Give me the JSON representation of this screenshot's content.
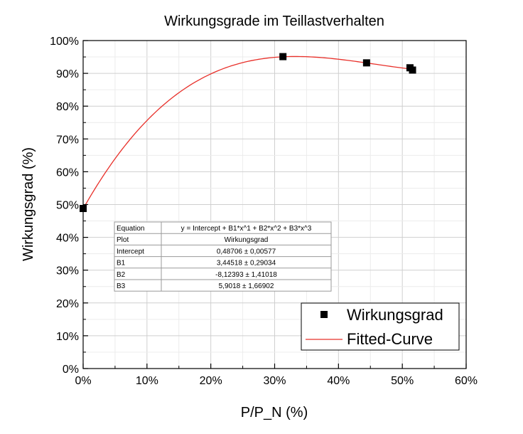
{
  "chart_data": {
    "type": "scatter",
    "title": "Wirkungsgrade im Teillastverhalten",
    "xlabel": "P/P_N (%)",
    "ylabel": "Wirkungsgrad (%)",
    "xlim": [
      0,
      0.6
    ],
    "ylim": [
      0,
      1.0
    ],
    "x_ticks": [
      "0%",
      "10%",
      "20%",
      "30%",
      "40%",
      "50%",
      "60%"
    ],
    "y_ticks": [
      "0%",
      "10%",
      "20%",
      "30%",
      "40%",
      "50%",
      "60%",
      "70%",
      "80%",
      "90%",
      "100%"
    ],
    "grid": true,
    "legend_position": "bottom-right",
    "series": [
      {
        "name": "Wirkungsgrad",
        "kind": "points",
        "color": "#000000",
        "marker": "square",
        "x": [
          0.0,
          0.313,
          0.444,
          0.512,
          0.516
        ],
        "y": [
          0.488,
          0.951,
          0.932,
          0.917,
          0.91
        ]
      },
      {
        "name": "Fitted-Curve",
        "kind": "line",
        "color": "#e8302a",
        "x_range": [
          0.0,
          0.516
        ],
        "coefficients": {
          "intercept": 0.48706,
          "B1": 3.44518,
          "B2": -8.12393,
          "B3": 5.9018
        }
      }
    ],
    "fit_table": {
      "rows": [
        [
          "Equation",
          "y = Intercept + B1*x^1 + B2*x^2 + B3*x^3"
        ],
        [
          "Plot",
          "Wirkungsgrad"
        ],
        [
          "Intercept",
          "0,48706 ± 0,00577"
        ],
        [
          "B1",
          "3,44518 ± 0,29034"
        ],
        [
          "B2",
          "-8,12393 ± 1,41018"
        ],
        [
          "B3",
          "5,9018 ± 1,66902"
        ]
      ]
    }
  }
}
